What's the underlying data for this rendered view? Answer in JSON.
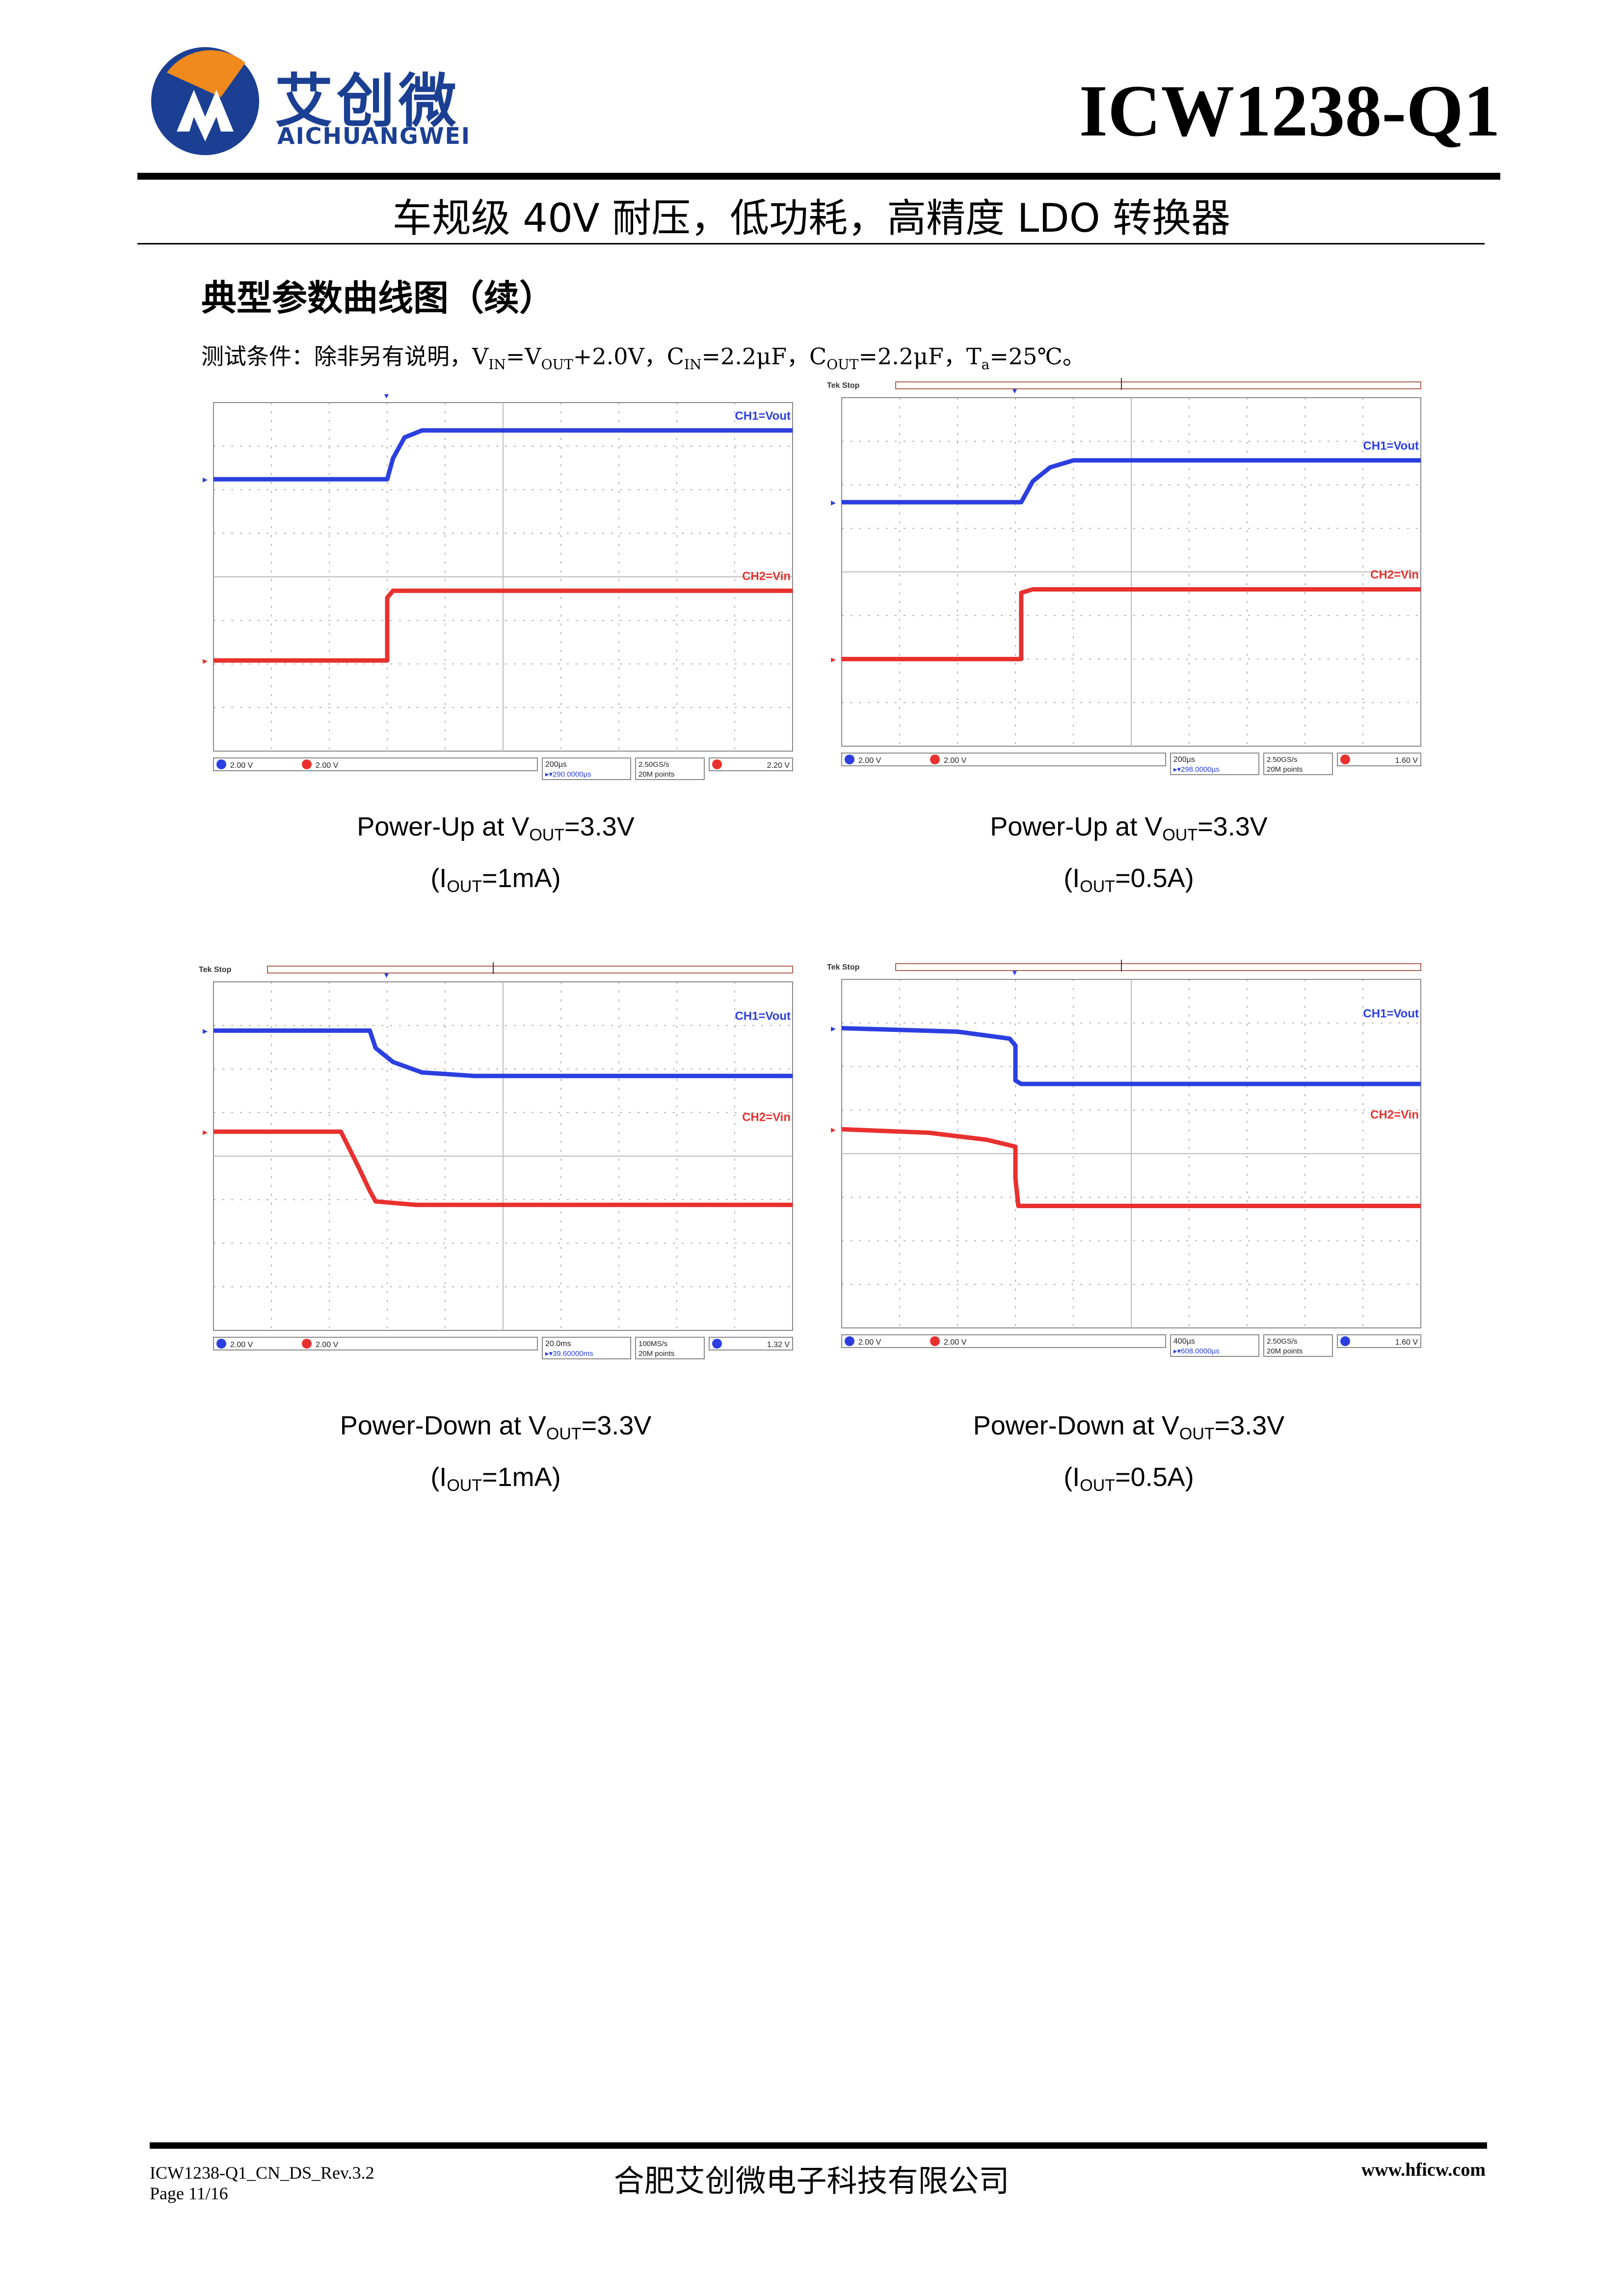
{
  "header": {
    "brand_cn": "艾创微",
    "brand_en": "AICHUANGWEI",
    "part_number": "ICW1238-Q1",
    "subtitle": "车规级 40V 耐压，低功耗，高精度 LDO 转换器"
  },
  "section": {
    "title": "典型参数曲线图（续）",
    "test_conditions": {
      "prefix": "测试条件：除非另有说明，",
      "vin": "V",
      "vin_sub": "IN",
      "vin_eq": "=V",
      "vout_sub": "OUT",
      "vin_rest": "+2.0V，",
      "cin": "C",
      "cin_sub": "IN",
      "cin_rest": "=2.2μF，",
      "cout": "C",
      "cout_sub": "OUT",
      "cout_rest": "=2.2μF，",
      "ta": "T",
      "ta_sub": "a",
      "ta_rest": "=25℃。"
    }
  },
  "colors": {
    "ch1": "#2b3fe0",
    "ch2": "#e8312f",
    "brand": "#1b3f92",
    "logo_orange": "#f08a1c"
  },
  "scopes": [
    {
      "tek_stop": "",
      "ch1_label": "CH1=Vout",
      "ch2_label": "CH2=Vin",
      "ch1_scale": "2.00 V",
      "ch2_scale": "2.00 V",
      "timebase": "200µs",
      "delay": "▸▾290.0000µs",
      "rate": "2.50GS/s",
      "points": "20M points",
      "trig_level": "2.20 V",
      "caption_line1_pre": "Power-Up at V",
      "caption_sub": "OUT",
      "caption_line1_post": "=3.3V",
      "caption_line2_pre": "(I",
      "caption_line2_sub": "OUT",
      "caption_line2_post": "=1mA)"
    },
    {
      "tek_stop": "Tek Stop",
      "ch1_label": "CH1=Vout",
      "ch2_label": "CH2=Vin",
      "ch1_scale": "2.00 V",
      "ch2_scale": "2.00 V",
      "timebase": "200µs",
      "delay": "▸▾298.0000µs",
      "rate": "2.50GS/s",
      "points": "20M points",
      "trig_level": "1.60 V",
      "caption_line1_pre": "Power-Up at V",
      "caption_sub": "OUT",
      "caption_line1_post": "=3.3V",
      "caption_line2_pre": "(I",
      "caption_line2_sub": "OUT",
      "caption_line2_post": "=0.5A)"
    },
    {
      "tek_stop": "Tek Stop",
      "ch1_label": "CH1=Vout",
      "ch2_label": "CH2=Vin",
      "ch1_scale": "2.00 V",
      "ch2_scale": "2.00 V",
      "timebase": "20.0ms",
      "delay": "▸▾39.60000ms",
      "rate": "100MS/s",
      "points": "20M points",
      "trig_level": "1.32 V",
      "caption_line1_pre": "Power-Down at V",
      "caption_sub": "OUT",
      "caption_line1_post": "=3.3V",
      "caption_line2_pre": "(I",
      "caption_line2_sub": "OUT",
      "caption_line2_post": "=1mA)"
    },
    {
      "tek_stop": "Tek Stop",
      "ch1_label": "CH1=Vout",
      "ch2_label": "CH2=Vin",
      "ch1_scale": "2.00 V",
      "ch2_scale": "2.00 V",
      "timebase": "400µs",
      "delay": "▸▾608.0000µs",
      "rate": "2.50GS/s",
      "points": "20M points",
      "trig_level": "1.60 V",
      "caption_line1_pre": "Power-Down at V",
      "caption_sub": "OUT",
      "caption_line1_post": "=3.3V",
      "caption_line2_pre": "(I",
      "caption_line2_sub": "OUT",
      "caption_line2_post": "=0.5A)"
    }
  ],
  "footer": {
    "doc_id": "ICW1238-Q1_CN_DS_Rev.3.2",
    "page": "Page 11/16",
    "company": "合肥艾创微电子科技有限公司",
    "url": "www.hficw.com"
  }
}
